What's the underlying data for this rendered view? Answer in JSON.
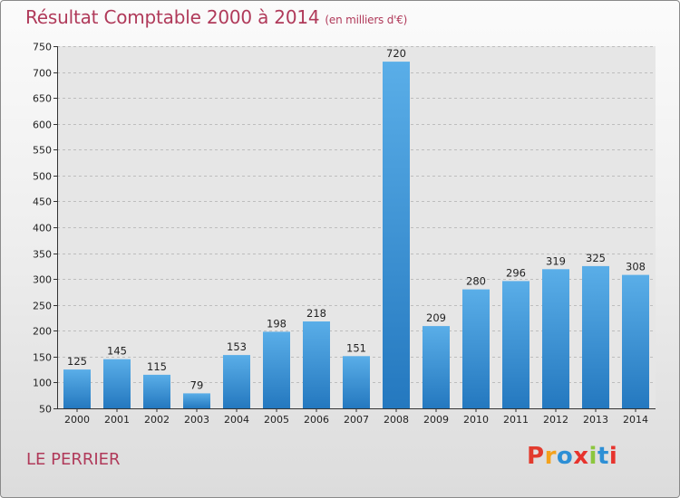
{
  "chart_data": {
    "type": "bar",
    "title": "Résultat Comptable 2000 à 2014",
    "unit_label": "(en milliers d'€)",
    "categories": [
      "2000",
      "2001",
      "2002",
      "2003",
      "2004",
      "2005",
      "2006",
      "2007",
      "2008",
      "2009",
      "2010",
      "2011",
      "2012",
      "2013",
      "2014"
    ],
    "values": [
      125,
      145,
      115,
      79,
      153,
      198,
      218,
      151,
      720,
      209,
      280,
      296,
      319,
      325,
      308
    ],
    "ylim": [
      50,
      750
    ],
    "yticks": [
      50,
      100,
      150,
      200,
      250,
      300,
      350,
      400,
      450,
      500,
      550,
      600,
      650,
      700,
      750
    ],
    "grid": "horizontal dashed",
    "bar_color": "#3b8fd6"
  },
  "footer": {
    "commune": "LE PERRIER",
    "logo_text": "Proxiti",
    "logo_colors": [
      "#e23b2e",
      "#f4a21c",
      "#2d8fd5",
      "#e7332d",
      "#8cc63e",
      "#2d8fd5",
      "#e7332d"
    ]
  }
}
